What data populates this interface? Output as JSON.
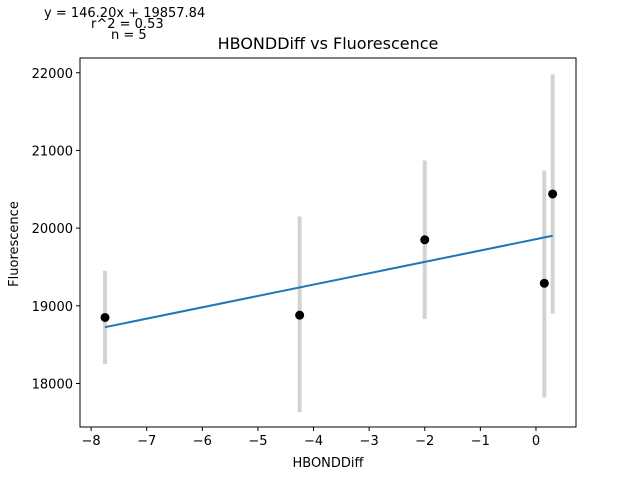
{
  "chart_data": {
    "type": "scatter",
    "title": "HBONDDiff vs Fluorescence",
    "xlabel": "HBONDDiff",
    "ylabel": "Fluorescence",
    "xlim": [
      -8.2,
      0.72
    ],
    "ylim": [
      17440,
      22190
    ],
    "xticks": [
      -8,
      -7,
      -6,
      -5,
      -4,
      -3,
      -2,
      -1,
      0
    ],
    "xtick_labels": [
      "−8",
      "−7",
      "−6",
      "−5",
      "−4",
      "−3",
      "−2",
      "−1",
      "0"
    ],
    "yticks": [
      18000,
      19000,
      20000,
      21000,
      22000
    ],
    "ytick_labels": [
      "18000",
      "19000",
      "20000",
      "21000",
      "22000"
    ],
    "grid": false,
    "annotations": [
      "y = 146.20x + 19857.84",
      "r^2 = 0.53",
      "n = 5"
    ],
    "points": [
      {
        "x": -7.75,
        "y": 18850,
        "err_low": 18250,
        "err_high": 19450
      },
      {
        "x": -4.25,
        "y": 18880,
        "err_low": 17630,
        "err_high": 20150
      },
      {
        "x": -2.0,
        "y": 19850,
        "err_low": 18830,
        "err_high": 20870
      },
      {
        "x": 0.15,
        "y": 19290,
        "err_low": 17820,
        "err_high": 20740
      },
      {
        "x": 0.3,
        "y": 20440,
        "err_low": 18900,
        "err_high": 21980
      }
    ],
    "fit": {
      "slope": 146.2,
      "intercept": 19857.84,
      "x_start": -7.75,
      "x_end": 0.3
    },
    "colors": {
      "points": "#000000",
      "errorbars": "#d3d3d3",
      "fit": "#1f77b4"
    }
  }
}
